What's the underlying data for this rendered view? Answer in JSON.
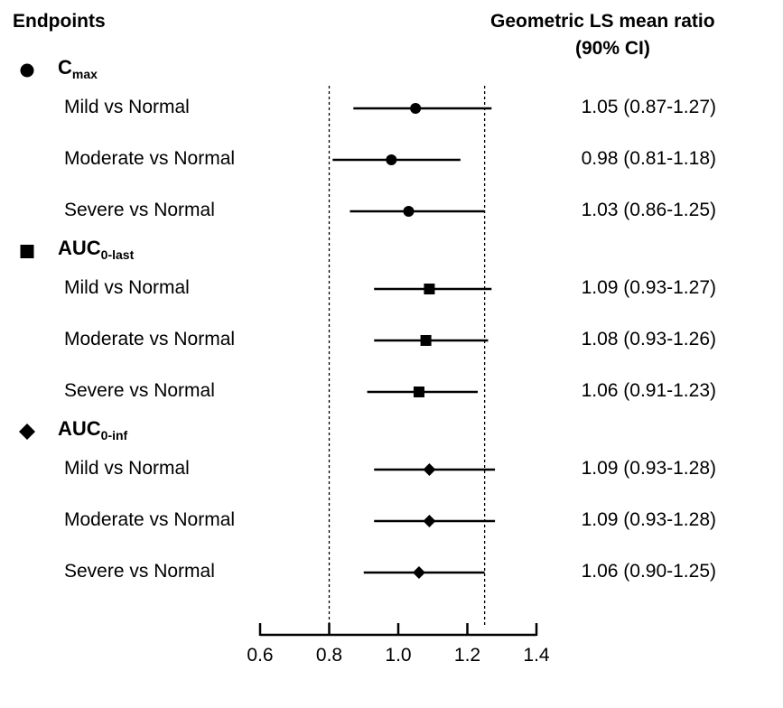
{
  "header": {
    "left": "Endpoints",
    "right_line1": "Geometric LS mean ratio",
    "right_line2": "(90% CI)"
  },
  "chart_data": {
    "type": "forest",
    "xlim": [
      0.6,
      1.4
    ],
    "ticks": [
      "0.6",
      "0.8",
      "1.0",
      "1.2",
      "1.4"
    ],
    "reference_lines": [
      0.8,
      1.25
    ],
    "groups": [
      {
        "marker": "circle",
        "label_main": "C",
        "label_sub": "max",
        "rows": [
          {
            "label": "Mild vs Normal",
            "estimate": 1.05,
            "lower": 0.87,
            "upper": 1.27,
            "ci_text": "1.05 (0.87-1.27)"
          },
          {
            "label": "Moderate vs Normal",
            "estimate": 0.98,
            "lower": 0.81,
            "upper": 1.18,
            "ci_text": "0.98 (0.81-1.18)"
          },
          {
            "label": "Severe vs Normal",
            "estimate": 1.03,
            "lower": 0.86,
            "upper": 1.25,
            "ci_text": "1.03 (0.86-1.25)"
          }
        ]
      },
      {
        "marker": "square",
        "label_main": "AUC",
        "label_sub": "0-last",
        "rows": [
          {
            "label": "Mild vs Normal",
            "estimate": 1.09,
            "lower": 0.93,
            "upper": 1.27,
            "ci_text": "1.09 (0.93-1.27)"
          },
          {
            "label": "Moderate vs Normal",
            "estimate": 1.08,
            "lower": 0.93,
            "upper": 1.26,
            "ci_text": "1.08 (0.93-1.26)"
          },
          {
            "label": "Severe vs Normal",
            "estimate": 1.06,
            "lower": 0.91,
            "upper": 1.23,
            "ci_text": "1.06 (0.91-1.23)"
          }
        ]
      },
      {
        "marker": "diamond",
        "label_main": "AUC",
        "label_sub": "0-inf",
        "rows": [
          {
            "label": "Mild vs Normal",
            "estimate": 1.09,
            "lower": 0.93,
            "upper": 1.28,
            "ci_text": "1.09 (0.93-1.28)"
          },
          {
            "label": "Moderate vs Normal",
            "estimate": 1.09,
            "lower": 0.93,
            "upper": 1.28,
            "ci_text": "1.09 (0.93-1.28)"
          },
          {
            "label": "Severe vs Normal",
            "estimate": 1.06,
            "lower": 0.9,
            "upper": 1.25,
            "ci_text": "1.06 (0.90-1.25)"
          }
        ]
      }
    ]
  }
}
